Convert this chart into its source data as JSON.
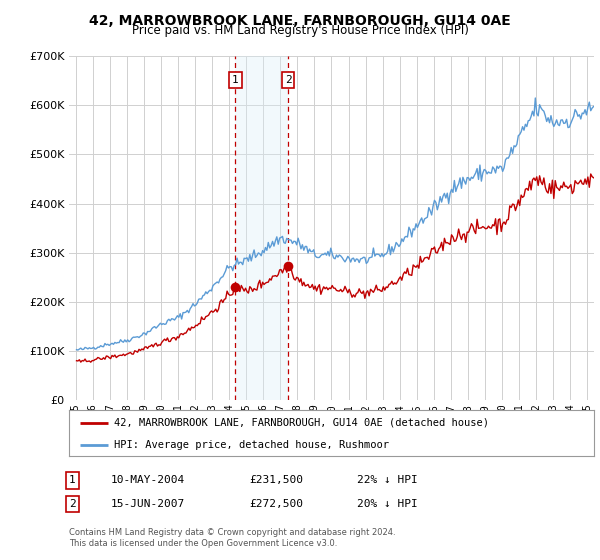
{
  "title": "42, MARROWBROOK LANE, FARNBOROUGH, GU14 0AE",
  "subtitle": "Price paid vs. HM Land Registry's House Price Index (HPI)",
  "legend_line1": "42, MARROWBROOK LANE, FARNBOROUGH, GU14 0AE (detached house)",
  "legend_line2": "HPI: Average price, detached house, Rushmoor",
  "footnote": "Contains HM Land Registry data © Crown copyright and database right 2024.\nThis data is licensed under the Open Government Licence v3.0.",
  "sale1_date": "10-MAY-2004",
  "sale1_price": "£231,500",
  "sale1_hpi": "22% ↓ HPI",
  "sale2_date": "15-JUN-2007",
  "sale2_price": "£272,500",
  "sale2_hpi": "20% ↓ HPI",
  "sale1_x": 2004.36,
  "sale2_x": 2007.46,
  "sale1_price_val": 231500,
  "sale2_price_val": 272500,
  "hpi_color": "#5b9bd5",
  "price_color": "#c00000",
  "vline_color": "#c00000",
  "shade_color": "#dceef8",
  "background_color": "#ffffff",
  "grid_color": "#d0d0d0",
  "ylim": [
    0,
    700000
  ],
  "xlim": [
    1994.6,
    2025.4
  ]
}
